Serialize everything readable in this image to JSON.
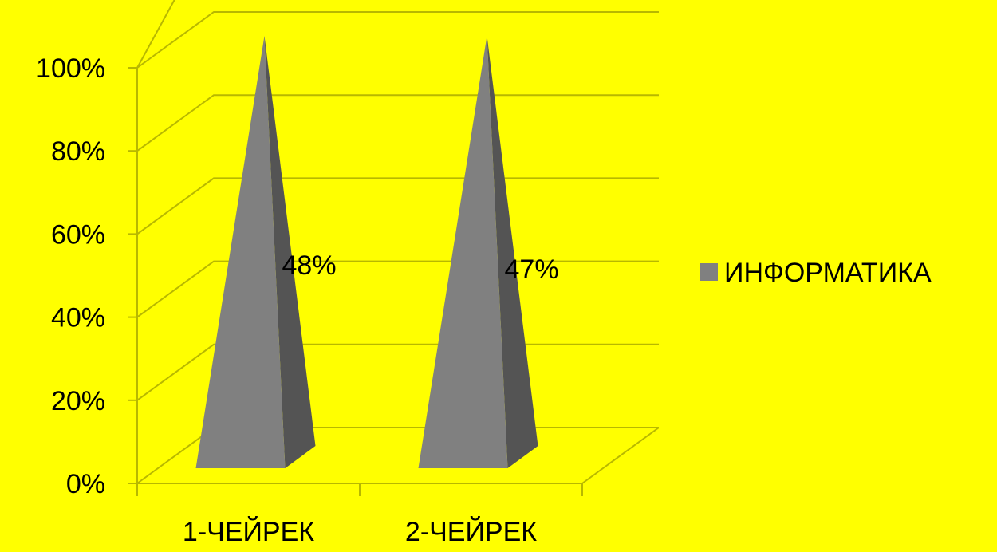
{
  "page": {
    "background": "#FFFF00"
  },
  "chart_data": {
    "type": "bar",
    "subtype": "3d-pyramid",
    "categories": [
      "1-ЧЕЙРЕК",
      "2-ЧЕЙРЕК"
    ],
    "series": [
      {
        "name": "ИНФОРМАТИКА",
        "values": [
          48,
          47
        ],
        "data_labels": [
          "48%",
          "47%"
        ],
        "color": "#808080"
      }
    ],
    "yticks": [
      "0%",
      "20%",
      "40%",
      "60%",
      "80%",
      "100%"
    ],
    "ylim": [
      0,
      100
    ],
    "value_format": "percent",
    "grid": true,
    "legend_position": "right",
    "colors": {
      "gridline": "#B8B800",
      "pyramid_front": "#808080",
      "pyramid_side": "#545454"
    }
  }
}
